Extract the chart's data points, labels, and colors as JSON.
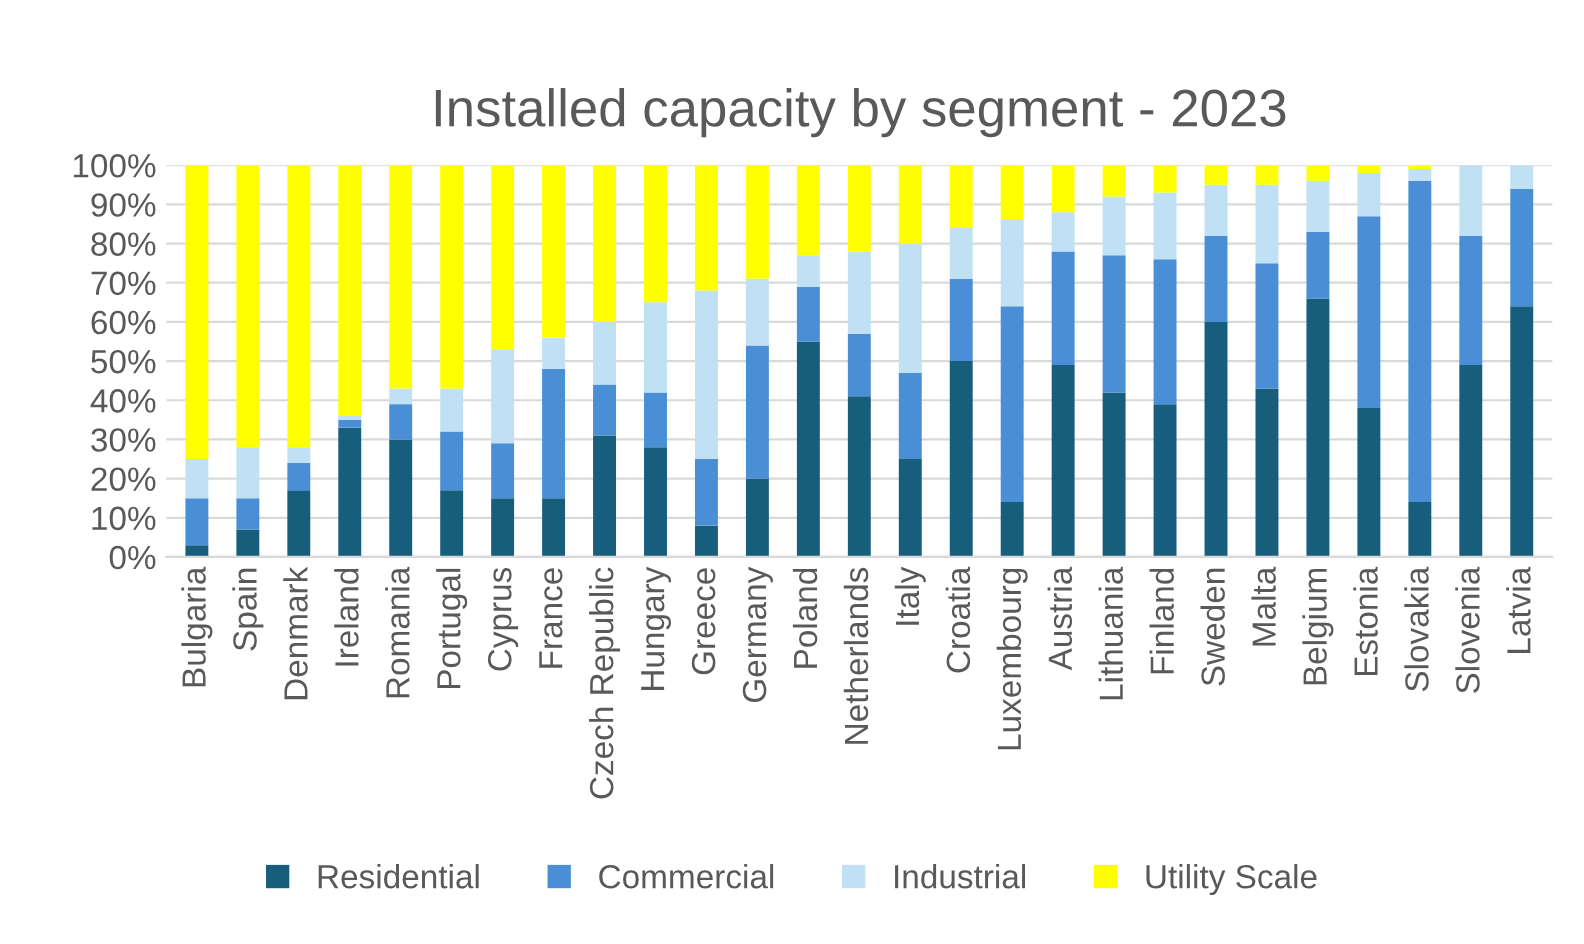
{
  "chart_data": {
    "type": "bar",
    "title": "Installed capacity by segment - 2023",
    "stacked": true,
    "categories": [
      "Bulgaria",
      "Spain",
      "Denmark",
      "Ireland",
      "Romania",
      "Portugal",
      "Cyprus",
      "France",
      "Czech Republic",
      "Hungary",
      "Greece",
      "Germany",
      "Poland",
      "Netherlands",
      "Italy",
      "Croatia",
      "Luxembourg",
      "Austria",
      "Lithuania",
      "Finland",
      "Sweden",
      "Malta",
      "Belgium",
      "Estonia",
      "Slovakia",
      "Slovenia",
      "Latvia"
    ],
    "series": [
      {
        "name": "Residential",
        "color": "#175e7c",
        "values": [
          3,
          7,
          17,
          33,
          30,
          17,
          15,
          15,
          31,
          28,
          8,
          20,
          55,
          41,
          25,
          50,
          14,
          49,
          42,
          39,
          60,
          43,
          66,
          38,
          14,
          49,
          64
        ]
      },
      {
        "name": "Commercial",
        "color": "#4a8fd6",
        "values": [
          12,
          8,
          7,
          2,
          9,
          15,
          14,
          33,
          13,
          14,
          17,
          34,
          14,
          16,
          22,
          21,
          50,
          29,
          35,
          37,
          22,
          32,
          17,
          49,
          82,
          33,
          30
        ]
      },
      {
        "name": "Industrial",
        "color": "#bfe1f3",
        "values": [
          10,
          13,
          4,
          1,
          4,
          11,
          24,
          8,
          16,
          23,
          43,
          17,
          8,
          21,
          33,
          13,
          22,
          10,
          15,
          17,
          13,
          20,
          13,
          11,
          3,
          18,
          6
        ]
      },
      {
        "name": "Utility Scale",
        "color": "#ffff00",
        "values": [
          75,
          72,
          72,
          64,
          57,
          57,
          47,
          44,
          40,
          35,
          32,
          29,
          23,
          22,
          20,
          16,
          14,
          12,
          8,
          7,
          5,
          5,
          4,
          2,
          1,
          0,
          0
        ]
      }
    ],
    "ylim": [
      0,
      100
    ],
    "yticks": [
      {
        "value": 0,
        "label": "0%"
      },
      {
        "value": 10,
        "label": "10%"
      },
      {
        "value": 20,
        "label": "20%"
      },
      {
        "value": 30,
        "label": "30%"
      },
      {
        "value": 40,
        "label": "40%"
      },
      {
        "value": 50,
        "label": "50%"
      },
      {
        "value": 60,
        "label": "60%"
      },
      {
        "value": 70,
        "label": "70%"
      },
      {
        "value": 80,
        "label": "80%"
      },
      {
        "value": 90,
        "label": "90%"
      },
      {
        "value": 100,
        "label": "100%"
      }
    ],
    "grid": "y",
    "legend": "bottom"
  }
}
